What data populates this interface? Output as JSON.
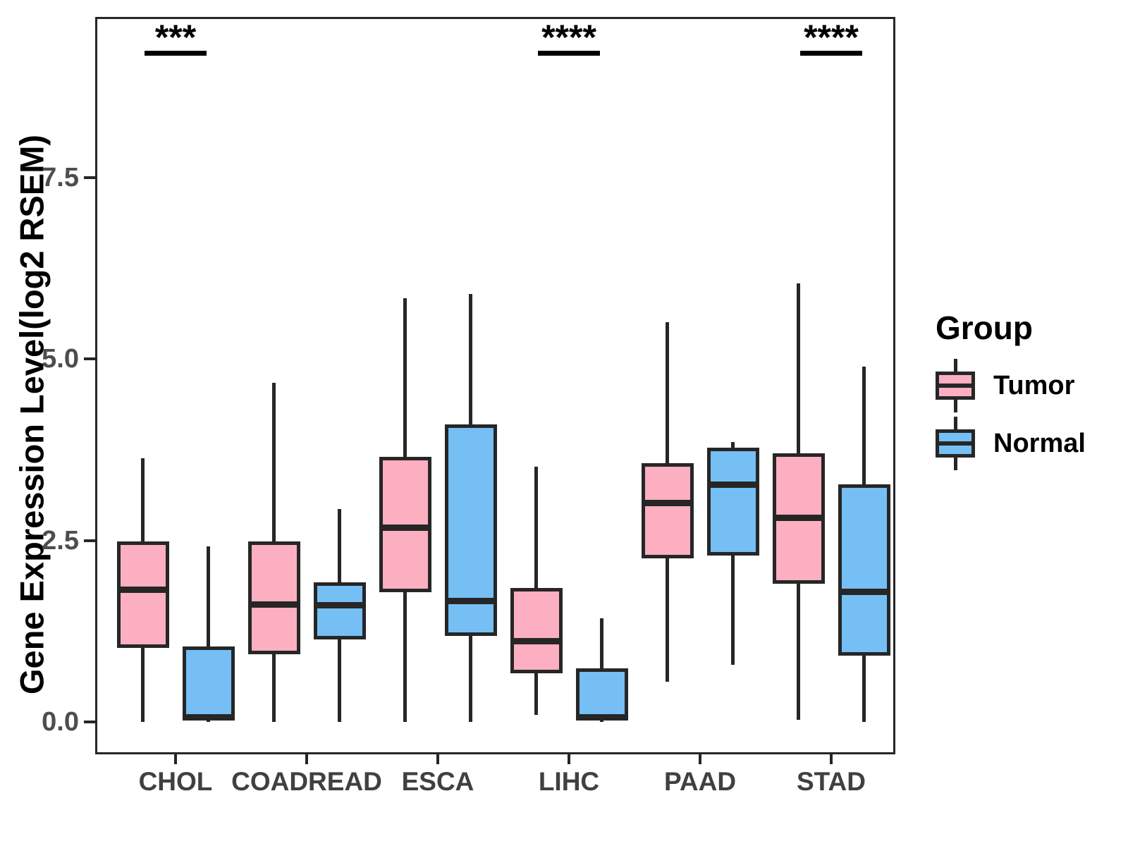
{
  "chart_data": {
    "type": "boxplot",
    "title": "",
    "xlabel": "",
    "ylabel": "Gene Expression Level(log2 RSEM)",
    "categories": [
      "CHOL",
      "COADREAD",
      "ESCA",
      "LIHC",
      "PAAD",
      "STAD"
    ],
    "yticks": [
      {
        "label": "0.0",
        "value": 0.0
      },
      {
        "label": "2.5",
        "value": 2.5
      },
      {
        "label": "5.0",
        "value": 5.0
      },
      {
        "label": "7.5",
        "value": 7.5
      }
    ],
    "ylim": [
      -0.45,
      9.72
    ],
    "grid": false,
    "stroke_color": "#262626",
    "axis_text_color": "#4D4D4D",
    "series": [
      {
        "name": "Tumor",
        "color": "#FBAFC1",
        "boxes": [
          {
            "min": 0.0,
            "q1": 1.02,
            "median": 1.82,
            "q3": 2.49,
            "max": 3.63
          },
          {
            "min": 0.0,
            "q1": 0.93,
            "median": 1.62,
            "q3": 2.49,
            "max": 4.67
          },
          {
            "min": 0.0,
            "q1": 1.79,
            "median": 2.68,
            "q3": 3.65,
            "max": 5.84
          },
          {
            "min": 0.09,
            "q1": 0.67,
            "median": 1.11,
            "q3": 1.84,
            "max": 3.52
          },
          {
            "min": 0.55,
            "q1": 2.25,
            "median": 3.02,
            "q3": 3.57,
            "max": 5.51
          },
          {
            "min": 0.03,
            "q1": 1.9,
            "median": 2.81,
            "q3": 3.7,
            "max": 6.04
          }
        ]
      },
      {
        "name": "Normal",
        "color": "#75BFF5",
        "boxes": [
          {
            "min": 0.0,
            "q1": 0.02,
            "median": 0.06,
            "q3": 1.04,
            "max": 2.42
          },
          {
            "min": 0.0,
            "q1": 1.13,
            "median": 1.61,
            "q3": 1.92,
            "max": 2.93
          },
          {
            "min": 0.0,
            "q1": 1.18,
            "median": 1.66,
            "q3": 4.1,
            "max": 5.9
          },
          {
            "min": 0.0,
            "q1": 0.02,
            "median": 0.06,
            "q3": 0.74,
            "max": 1.43
          },
          {
            "min": 0.78,
            "q1": 2.29,
            "median": 3.27,
            "q3": 3.78,
            "max": 3.86
          },
          {
            "min": 0.0,
            "q1": 0.91,
            "median": 1.79,
            "q3": 3.27,
            "max": 4.9
          }
        ]
      }
    ],
    "significance": [
      {
        "category": "CHOL",
        "label": "***"
      },
      {
        "category": "LIHC",
        "label": "****"
      },
      {
        "category": "STAD",
        "label": "****"
      }
    ],
    "legend": {
      "title": "Group",
      "position": "right",
      "entries": [
        {
          "label": "Tumor",
          "color": "#FBAFC1"
        },
        {
          "label": "Normal",
          "color": "#75BFF5"
        }
      ]
    }
  }
}
